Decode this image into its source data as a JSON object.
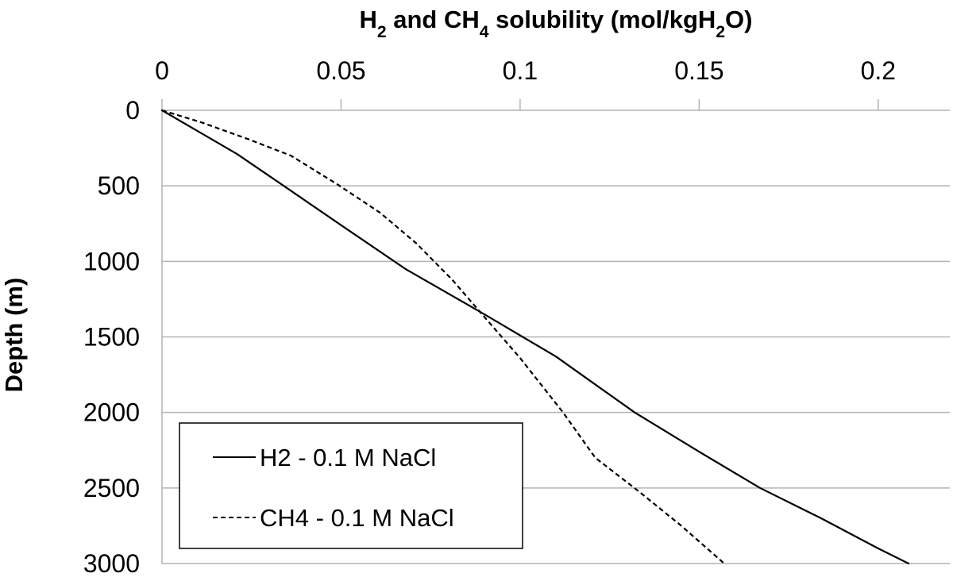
{
  "chart_data": {
    "type": "line",
    "title": "",
    "xlabel": {
      "parts": [
        {
          "text": "H"
        },
        {
          "text": "2",
          "sub": true
        },
        {
          "text": " and CH"
        },
        {
          "text": "4",
          "sub": true
        },
        {
          "text": " solubility (mol/kgH"
        },
        {
          "text": "2",
          "sub": true
        },
        {
          "text": "O)"
        }
      ]
    },
    "ylabel": "Depth (m)",
    "x_axis_position": "top",
    "y_axis_inverted": true,
    "xlim": [
      0,
      0.22
    ],
    "ylim": [
      0,
      3000
    ],
    "x_ticks": [
      0,
      0.05,
      0.1,
      0.15,
      0.2
    ],
    "x_tick_labels": [
      "0",
      "0.05",
      "0.1",
      "0.15",
      "0.2"
    ],
    "y_ticks": [
      0,
      500,
      1000,
      1500,
      2000,
      2500,
      3000
    ],
    "y_tick_labels": [
      "0",
      "500",
      "1000",
      "1500",
      "2000",
      "2500",
      "3000"
    ],
    "grid": "horizontal",
    "legend_position": "bottom-left",
    "series": [
      {
        "name": "H2 - 0.1 M NaCl",
        "style": "solid",
        "color": "#000000",
        "points": [
          [
            0,
            0
          ],
          [
            0.021,
            290
          ],
          [
            0.034,
            500
          ],
          [
            0.05,
            760
          ],
          [
            0.068,
            1050
          ],
          [
            0.09,
            1350
          ],
          [
            0.11,
            1630
          ],
          [
            0.132,
            2000
          ],
          [
            0.15,
            2260
          ],
          [
            0.167,
            2500
          ],
          [
            0.184,
            2700
          ],
          [
            0.2,
            2900
          ],
          [
            0.2085,
            3000
          ]
        ]
      },
      {
        "name": "CH4 - 0.1 M NaCl",
        "style": "dashed",
        "color": "#000000",
        "points": [
          [
            0,
            0
          ],
          [
            0.011,
            80
          ],
          [
            0.024,
            190
          ],
          [
            0.036,
            300
          ],
          [
            0.049,
            490
          ],
          [
            0.061,
            680
          ],
          [
            0.071,
            880
          ],
          [
            0.081,
            1120
          ],
          [
            0.089,
            1340
          ],
          [
            0.1,
            1640
          ],
          [
            0.112,
            2000
          ],
          [
            0.121,
            2300
          ],
          [
            0.133,
            2520
          ],
          [
            0.145,
            2750
          ],
          [
            0.157,
            3000
          ]
        ]
      }
    ]
  }
}
